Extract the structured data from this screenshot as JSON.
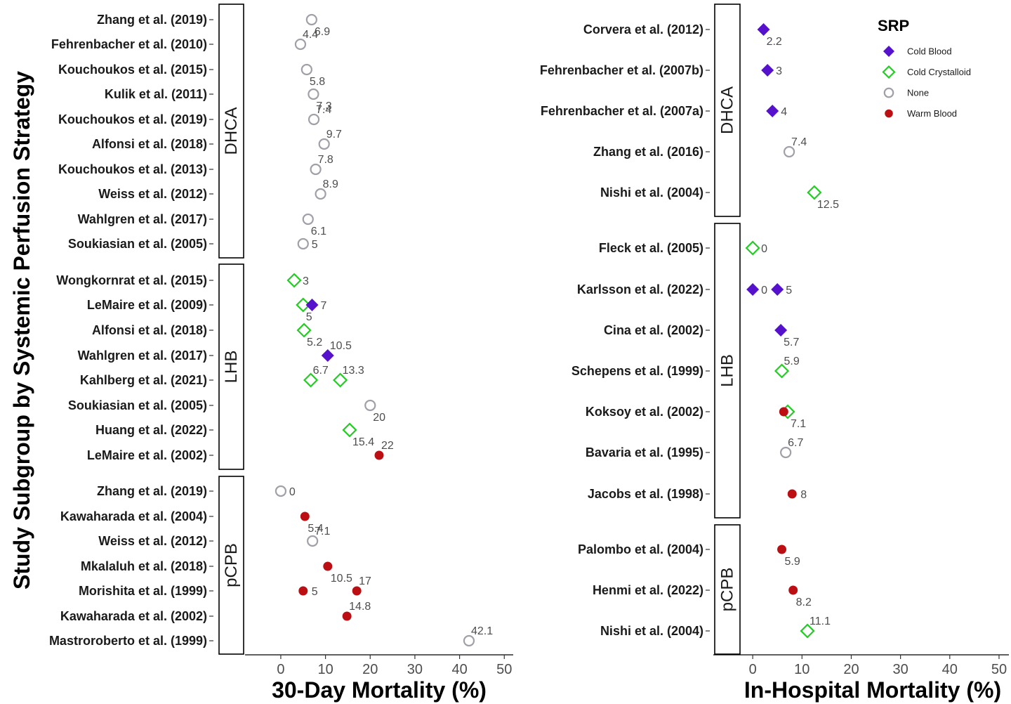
{
  "y_axis_title": "Study Subgroup by Systemic Perfusion Strategy",
  "legend": {
    "title": "SRP",
    "items": [
      {
        "label": "Cold Blood",
        "shape": "diamond-filled",
        "color": "#5511CC"
      },
      {
        "label": "Cold Crystalloid",
        "shape": "diamond-open",
        "color": "#22CC22"
      },
      {
        "label": "None",
        "shape": "circle-open",
        "color": "#A0A0A8"
      },
      {
        "label": "Warm Blood",
        "shape": "circle-filled",
        "color": "#BB0F14"
      }
    ]
  },
  "chart_data": [
    {
      "type": "scatter",
      "xlabel": "30-Day Mortality (%)",
      "xlim": [
        -8,
        52
      ],
      "xticks": [
        0,
        10,
        20,
        30,
        40,
        50
      ],
      "panels": [
        {
          "name": "DHCA",
          "rows": [
            {
              "study": "Zhang et al. (2019)",
              "points": [
                {
                  "srp": "None",
                  "value": 6.9,
                  "label": "6.9",
                  "pos": "below"
                }
              ]
            },
            {
              "study": "Fehrenbacher et al. (2010)",
              "points": [
                {
                  "srp": "None",
                  "value": 4.4,
                  "label": "4.4",
                  "pos": "above"
                }
              ]
            },
            {
              "study": "Kouchoukos et al. (2015)",
              "points": [
                {
                  "srp": "None",
                  "value": 5.8,
                  "label": "5.8",
                  "pos": "below"
                }
              ]
            },
            {
              "study": "Kulik et al. (2011)",
              "points": [
                {
                  "srp": "None",
                  "value": 7.3,
                  "label": "7.3",
                  "pos": "below"
                }
              ]
            },
            {
              "study": "Kouchoukos et al. (2019)",
              "points": [
                {
                  "srp": "None",
                  "value": 7.4,
                  "label": "7.4",
                  "pos": "above"
                }
              ]
            },
            {
              "study": "Alfonsi et al. (2018)",
              "points": [
                {
                  "srp": "None",
                  "value": 9.7,
                  "label": "9.7",
                  "pos": "above"
                }
              ]
            },
            {
              "study": "Kouchoukos et al. (2013)",
              "points": [
                {
                  "srp": "None",
                  "value": 7.8,
                  "label": "7.8",
                  "pos": "above"
                }
              ]
            },
            {
              "study": "Weiss et al. (2012)",
              "points": [
                {
                  "srp": "None",
                  "value": 8.9,
                  "label": "8.9",
                  "pos": "above"
                }
              ]
            },
            {
              "study": "Wahlgren et al. (2017)",
              "points": [
                {
                  "srp": "None",
                  "value": 6.1,
                  "label": "6.1",
                  "pos": "below"
                }
              ]
            },
            {
              "study": "Soukiasian et al. (2005)",
              "points": [
                {
                  "srp": "None",
                  "value": 5.0,
                  "label": "5",
                  "pos": "right"
                }
              ]
            }
          ]
        },
        {
          "name": "LHB",
          "rows": [
            {
              "study": "Wongkornrat et al. (2015)",
              "points": [
                {
                  "srp": "Cold Crystalloid",
                  "value": 3.0,
                  "label": "3",
                  "pos": "right"
                }
              ]
            },
            {
              "study": "LeMaire et al. (2009)",
              "points": [
                {
                  "srp": "Cold Crystalloid",
                  "value": 5.0,
                  "label": "5",
                  "pos": "below"
                },
                {
                  "srp": "Cold Blood",
                  "value": 7.0,
                  "label": "7",
                  "pos": "right"
                }
              ]
            },
            {
              "study": "Alfonsi et al. (2018)",
              "points": [
                {
                  "srp": "Cold Crystalloid",
                  "value": 5.2,
                  "label": "5.2",
                  "pos": "below"
                }
              ]
            },
            {
              "study": "Wahlgren et al. (2017)",
              "points": [
                {
                  "srp": "Cold Blood",
                  "value": 10.5,
                  "label": "10.5",
                  "pos": "above"
                }
              ]
            },
            {
              "study": "Kahlberg et al. (2021)",
              "points": [
                {
                  "srp": "Cold Crystalloid",
                  "value": 6.7,
                  "label": "6.7",
                  "pos": "above"
                },
                {
                  "srp": "Cold Crystalloid",
                  "value": 13.3,
                  "label": "13.3",
                  "pos": "above"
                }
              ]
            },
            {
              "study": "Soukiasian et al. (2005)",
              "points": [
                {
                  "srp": "None",
                  "value": 20.0,
                  "label": "20",
                  "pos": "below"
                }
              ]
            },
            {
              "study": "Huang et al. (2022)",
              "points": [
                {
                  "srp": "Cold Crystalloid",
                  "value": 15.4,
                  "label": "15.4",
                  "pos": "below"
                }
              ]
            },
            {
              "study": "LeMaire et al. (2002)",
              "points": [
                {
                  "srp": "Warm Blood",
                  "value": 22.0,
                  "label": "22",
                  "pos": "above"
                }
              ]
            }
          ]
        },
        {
          "name": "pCPB",
          "rows": [
            {
              "study": "Zhang et al. (2019)",
              "points": [
                {
                  "srp": "None",
                  "value": 0.0,
                  "label": "0",
                  "pos": "right"
                }
              ]
            },
            {
              "study": "Kawaharada et al. (2004)",
              "points": [
                {
                  "srp": "Warm Blood",
                  "value": 5.4,
                  "label": "5.4",
                  "pos": "below"
                }
              ]
            },
            {
              "study": "Weiss et al. (2012)",
              "points": [
                {
                  "srp": "None",
                  "value": 7.1,
                  "label": "7.1",
                  "pos": "above"
                }
              ]
            },
            {
              "study": "Mkalaluh et al. (2018)",
              "points": [
                {
                  "srp": "Warm Blood",
                  "value": 10.5,
                  "label": "10.5",
                  "pos": "below"
                }
              ]
            },
            {
              "study": "Morishita et al. (1999)",
              "points": [
                {
                  "srp": "Warm Blood",
                  "value": 5.0,
                  "label": "5",
                  "pos": "right"
                },
                {
                  "srp": "Warm Blood",
                  "value": 17.0,
                  "label": "17",
                  "pos": "above"
                }
              ]
            },
            {
              "study": "Kawaharada et al. (2002)",
              "points": [
                {
                  "srp": "Warm Blood",
                  "value": 14.8,
                  "label": "14.8",
                  "pos": "above"
                }
              ]
            },
            {
              "study": "Mastroroberto et al. (1999)",
              "points": [
                {
                  "srp": "None",
                  "value": 42.1,
                  "label": "42.1",
                  "pos": "above"
                }
              ]
            }
          ]
        }
      ]
    },
    {
      "type": "scatter",
      "xlabel": "In-Hospital Mortality (%)",
      "xlim": [
        -8,
        52
      ],
      "xticks": [
        0,
        10,
        20,
        30,
        40,
        50
      ],
      "panels": [
        {
          "name": "DHCA",
          "rows": [
            {
              "study": "Corvera et al. (2012)",
              "points": [
                {
                  "srp": "Cold Blood",
                  "value": 2.2,
                  "label": "2.2",
                  "pos": "below"
                }
              ]
            },
            {
              "study": "Fehrenbacher et al. (2007b)",
              "points": [
                {
                  "srp": "Cold Blood",
                  "value": 3.0,
                  "label": "3",
                  "pos": "right"
                }
              ]
            },
            {
              "study": "Fehrenbacher et al. (2007a)",
              "points": [
                {
                  "srp": "Cold Blood",
                  "value": 4.0,
                  "label": "4",
                  "pos": "right"
                }
              ]
            },
            {
              "study": "Zhang et al. (2016)",
              "points": [
                {
                  "srp": "None",
                  "value": 7.4,
                  "label": "7.4",
                  "pos": "above"
                }
              ]
            },
            {
              "study": "Nishi et al. (2004)",
              "points": [
                {
                  "srp": "Cold Crystalloid",
                  "value": 12.5,
                  "label": "12.5",
                  "pos": "below"
                }
              ]
            }
          ]
        },
        {
          "name": "LHB",
          "rows": [
            {
              "study": "Fleck et al. (2005)",
              "points": [
                {
                  "srp": "Cold Crystalloid",
                  "value": 0.0,
                  "label": "0",
                  "pos": "right"
                }
              ]
            },
            {
              "study": "Karlsson et al. (2022)",
              "points": [
                {
                  "srp": "Cold Blood",
                  "value": 0.0,
                  "label": "0",
                  "pos": "right"
                },
                {
                  "srp": "Cold Blood",
                  "value": 5.0,
                  "label": "5",
                  "pos": "right"
                }
              ]
            },
            {
              "study": "Cina et al. (2002)",
              "points": [
                {
                  "srp": "Cold Blood",
                  "value": 5.7,
                  "label": "5.7",
                  "pos": "below"
                }
              ]
            },
            {
              "study": "Schepens et al. (1999)",
              "points": [
                {
                  "srp": "Cold Crystalloid",
                  "value": 5.9,
                  "label": "5.9",
                  "pos": "above"
                }
              ]
            },
            {
              "study": "Koksoy et al. (2002)",
              "points": [
                {
                  "srp": "Cold Crystalloid",
                  "value": 7.1,
                  "label": "7.1",
                  "pos": "below"
                },
                {
                  "srp": "Warm Blood",
                  "value": 6.3,
                  "label": "",
                  "pos": "none"
                }
              ]
            },
            {
              "study": "Bavaria et al. (1995)",
              "points": [
                {
                  "srp": "None",
                  "value": 6.7,
                  "label": "6.7",
                  "pos": "above"
                }
              ]
            },
            {
              "study": "Jacobs et al. (1998)",
              "points": [
                {
                  "srp": "Warm Blood",
                  "value": 8.0,
                  "label": "8",
                  "pos": "right"
                }
              ]
            }
          ]
        },
        {
          "name": "pCPB",
          "rows": [
            {
              "study": "Palombo et al. (2004)",
              "points": [
                {
                  "srp": "Warm Blood",
                  "value": 5.9,
                  "label": "5.9",
                  "pos": "below"
                }
              ]
            },
            {
              "study": "Henmi et al. (2022)",
              "points": [
                {
                  "srp": "Warm Blood",
                  "value": 8.2,
                  "label": "8.2",
                  "pos": "below"
                }
              ]
            },
            {
              "study": "Nishi et al. (2004)",
              "points": [
                {
                  "srp": "Cold Crystalloid",
                  "value": 11.1,
                  "label": "11.1",
                  "pos": "above"
                }
              ]
            }
          ]
        }
      ]
    }
  ]
}
